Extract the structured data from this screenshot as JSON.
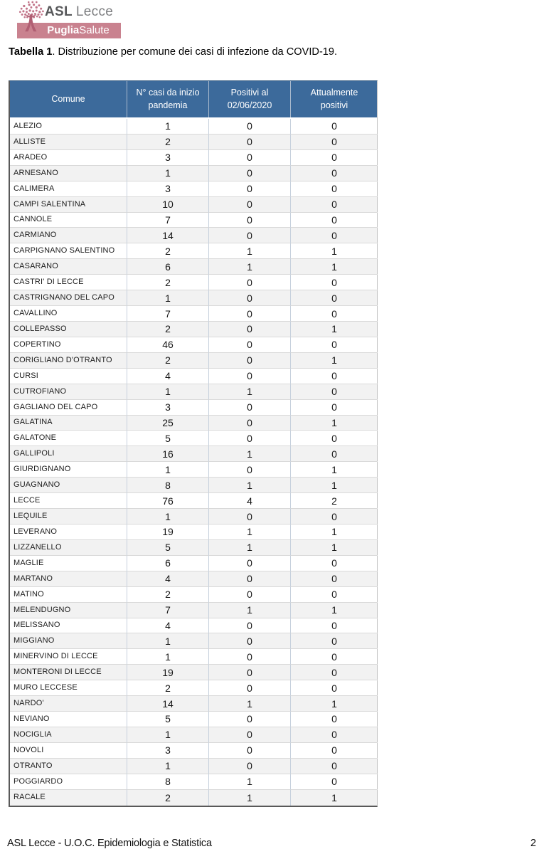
{
  "logo": {
    "org_bold": "ASL",
    "org_regular": "Lecce",
    "banner_bold": "Puglia",
    "banner_regular": "Salute"
  },
  "title": {
    "label": "Tabella 1",
    "rest": ". Distribuzione per comune dei casi di infezione da COVID-19."
  },
  "table": {
    "headers": [
      "Comune",
      "N° casi da inizio pandemia",
      "Positivi al 02/06/2020",
      "Attualmente positivi"
    ],
    "rows": [
      [
        "ALEZIO",
        1,
        0,
        0
      ],
      [
        "ALLISTE",
        2,
        0,
        0
      ],
      [
        "ARADEO",
        3,
        0,
        0
      ],
      [
        "ARNESANO",
        1,
        0,
        0
      ],
      [
        "CALIMERA",
        3,
        0,
        0
      ],
      [
        "CAMPI SALENTINA",
        10,
        0,
        0
      ],
      [
        "CANNOLE",
        7,
        0,
        0
      ],
      [
        "CARMIANO",
        14,
        0,
        0
      ],
      [
        "CARPIGNANO SALENTINO",
        2,
        1,
        1
      ],
      [
        "CASARANO",
        6,
        1,
        1
      ],
      [
        "CASTRI' DI LECCE",
        2,
        0,
        0
      ],
      [
        "CASTRIGNANO DEL CAPO",
        1,
        0,
        0
      ],
      [
        "CAVALLINO",
        7,
        0,
        0
      ],
      [
        "COLLEPASSO",
        2,
        0,
        1
      ],
      [
        "COPERTINO",
        46,
        0,
        0
      ],
      [
        "CORIGLIANO D'OTRANTO",
        2,
        0,
        1
      ],
      [
        "CURSI",
        4,
        0,
        0
      ],
      [
        "CUTROFIANO",
        1,
        1,
        0
      ],
      [
        "GAGLIANO DEL CAPO",
        3,
        0,
        0
      ],
      [
        "GALATINA",
        25,
        0,
        1
      ],
      [
        "GALATONE",
        5,
        0,
        0
      ],
      [
        "GALLIPOLI",
        16,
        1,
        0
      ],
      [
        "GIURDIGNANO",
        1,
        0,
        1
      ],
      [
        "GUAGNANO",
        8,
        1,
        1
      ],
      [
        "LECCE",
        76,
        4,
        2
      ],
      [
        "LEQUILE",
        1,
        0,
        0
      ],
      [
        "LEVERANO",
        19,
        1,
        1
      ],
      [
        "LIZZANELLO",
        5,
        1,
        1
      ],
      [
        "MAGLIE",
        6,
        0,
        0
      ],
      [
        "MARTANO",
        4,
        0,
        0
      ],
      [
        "MATINO",
        2,
        0,
        0
      ],
      [
        "MELENDUGNO",
        7,
        1,
        1
      ],
      [
        "MELISSANO",
        4,
        0,
        0
      ],
      [
        "MIGGIANO",
        1,
        0,
        0
      ],
      [
        "MINERVINO DI LECCE",
        1,
        0,
        0
      ],
      [
        "MONTERONI DI LECCE",
        19,
        0,
        0
      ],
      [
        "MURO LECCESE",
        2,
        0,
        0
      ],
      [
        "NARDO'",
        14,
        1,
        1
      ],
      [
        "NEVIANO",
        5,
        0,
        0
      ],
      [
        "NOCIGLIA",
        1,
        0,
        0
      ],
      [
        "NOVOLI",
        3,
        0,
        0
      ],
      [
        "OTRANTO",
        1,
        0,
        0
      ],
      [
        "POGGIARDO",
        8,
        1,
        0
      ],
      [
        "RACALE",
        2,
        1,
        1
      ]
    ]
  },
  "footer": {
    "left": "ASL Lecce - U.O.C. Epidemiologia e Statistica",
    "page_number": "2"
  },
  "colors": {
    "header_blue": "#3c6a9b",
    "banner_pink": "#c9828f",
    "logo_rose": "#c0germ",
    "row_alt": "#f2f2f2",
    "outer_border": "#595959"
  }
}
